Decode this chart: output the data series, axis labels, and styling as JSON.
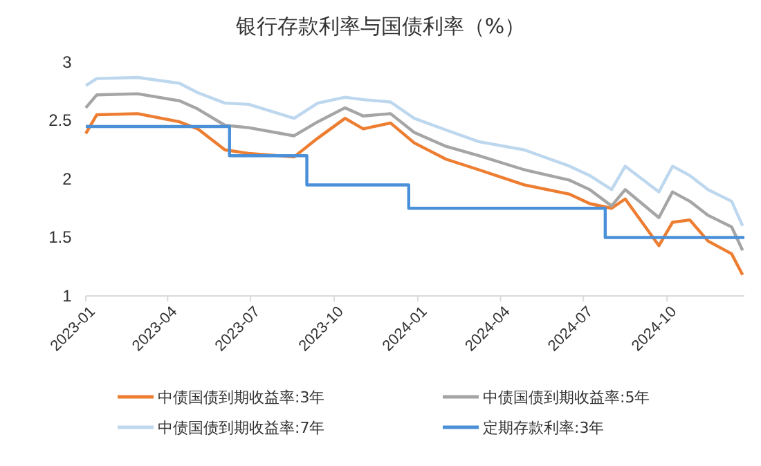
{
  "chart_data": {
    "type": "line",
    "title": "银行存款利率与国债利率（%）",
    "x": [
      "2023-01-01",
      "2023-01-13",
      "2023-02-27",
      "2023-04-14",
      "2023-05-04",
      "2023-06-03",
      "2023-06-29",
      "2023-08-18",
      "2023-09-13",
      "2023-10-13",
      "2023-11-02",
      "2023-12-02",
      "2023-12-28",
      "2024-02-01",
      "2024-03-08",
      "2024-04-27",
      "2024-06-16",
      "2024-07-08",
      "2024-08-01",
      "2024-08-16",
      "2024-09-22",
      "2024-10-07",
      "2024-10-26",
      "2024-11-15",
      "2024-12-11",
      "2024-12-23"
    ],
    "series": [
      {
        "name": "中债国债到期收益率:3年",
        "color": "#ed7d31",
        "values": [
          2.39,
          2.55,
          2.56,
          2.49,
          2.43,
          2.25,
          2.22,
          2.19,
          2.35,
          2.52,
          2.43,
          2.48,
          2.31,
          2.17,
          2.08,
          1.95,
          1.87,
          1.79,
          1.75,
          1.83,
          1.43,
          1.63,
          1.65,
          1.47,
          1.36,
          1.18
        ]
      },
      {
        "name": "中债国债到期收益率:5年",
        "color": "#a5a5a5",
        "values": [
          2.61,
          2.72,
          2.73,
          2.67,
          2.6,
          2.46,
          2.44,
          2.37,
          2.49,
          2.61,
          2.54,
          2.56,
          2.4,
          2.28,
          2.2,
          2.08,
          1.99,
          1.91,
          1.77,
          1.91,
          1.67,
          1.89,
          1.81,
          1.69,
          1.59,
          1.39
        ]
      },
      {
        "name": "中债国债到期收益率:7年",
        "color": "#bdd7ee",
        "values": [
          2.8,
          2.86,
          2.87,
          2.82,
          2.74,
          2.65,
          2.64,
          2.52,
          2.65,
          2.7,
          2.68,
          2.66,
          2.52,
          2.42,
          2.32,
          2.25,
          2.11,
          2.03,
          1.91,
          2.11,
          1.89,
          2.11,
          2.03,
          1.91,
          1.81,
          1.6
        ]
      },
      {
        "name": "定期存款利率:3年",
        "color": "#4a90d9",
        "type": "step",
        "x": [
          "2023-01-01",
          "2023-06-08",
          "2023-09-01",
          "2023-12-22",
          "2024-07-25",
          "2024-12-25"
        ],
        "values": [
          2.45,
          2.2,
          1.95,
          1.75,
          1.5,
          1.5
        ]
      }
    ],
    "xlim": [
      "2023-01-01",
      "2024-12-25"
    ],
    "xticks": [
      {
        "value": "2023-01-01",
        "label": "2023-01"
      },
      {
        "value": "2023-04-01",
        "label": "2023-04"
      },
      {
        "value": "2023-07-01",
        "label": "2023-07"
      },
      {
        "value": "2023-10-01",
        "label": "2023-10"
      },
      {
        "value": "2024-01-01",
        "label": "2024-01"
      },
      {
        "value": "2024-04-01",
        "label": "2024-04"
      },
      {
        "value": "2024-07-01",
        "label": "2024-07"
      },
      {
        "value": "2024-10-01",
        "label": "2024-10"
      }
    ],
    "ylim": [
      1,
      3
    ],
    "yticks": [
      1,
      1.5,
      2,
      2.5,
      3
    ],
    "grid": false,
    "legend": "bottom",
    "marker": "none",
    "line_style": "solid"
  }
}
